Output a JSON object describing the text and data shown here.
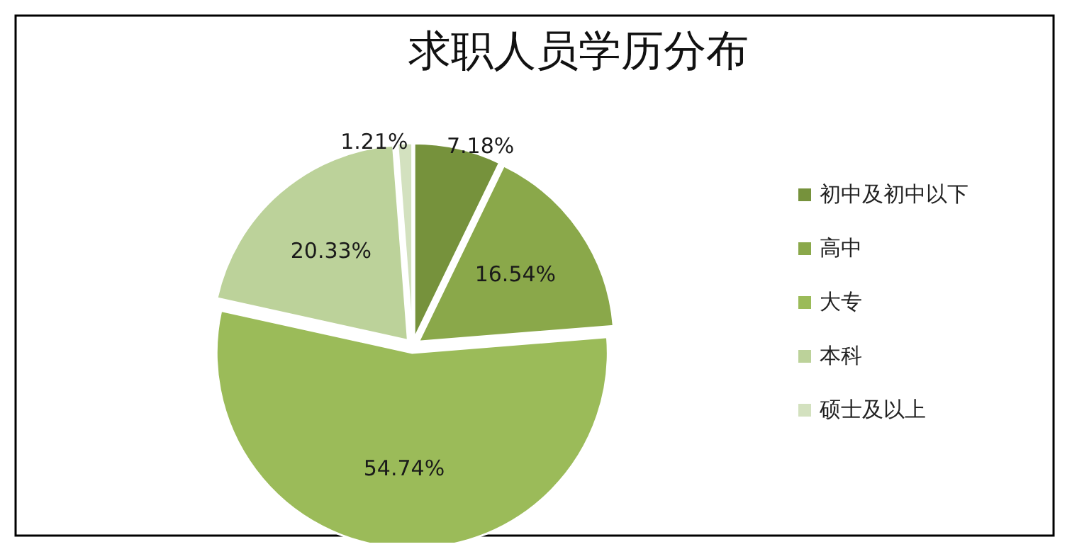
{
  "chart_data": {
    "type": "pie",
    "title": "求职人员学历分布",
    "categories": [
      "初中及初中以下",
      "高中",
      "大专",
      "本科",
      "硕士及以上"
    ],
    "values": [
      7.18,
      16.54,
      54.74,
      20.33,
      1.21
    ],
    "value_labels": [
      "7.18%",
      "16.54%",
      "54.74%",
      "20.33%",
      "1.21%"
    ],
    "colors": [
      "#76923c",
      "#8aa84a",
      "#9bbb59",
      "#bcd29a",
      "#d3e1bf"
    ],
    "legend": "right"
  }
}
